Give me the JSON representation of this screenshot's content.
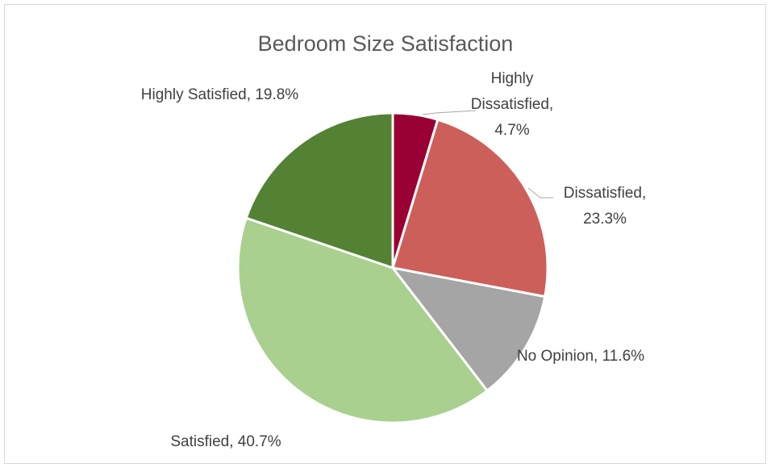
{
  "chart_data": {
    "type": "pie",
    "title": "Bedroom Size Satisfaction",
    "values": [
      4.7,
      23.3,
      11.6,
      40.7,
      19.8
    ],
    "value_labels": [
      "Highly Dissatisfied, 4.7%",
      "Dissatisfied, 23.3%",
      "No Opinion, 11.6%",
      "Satisfied, 40.7%",
      "Highly Satisfied, 19.8%"
    ],
    "colors": [
      "#990033",
      "#cd5f5a",
      "#a5a5a5",
      "#a9d08e",
      "#548235"
    ]
  }
}
